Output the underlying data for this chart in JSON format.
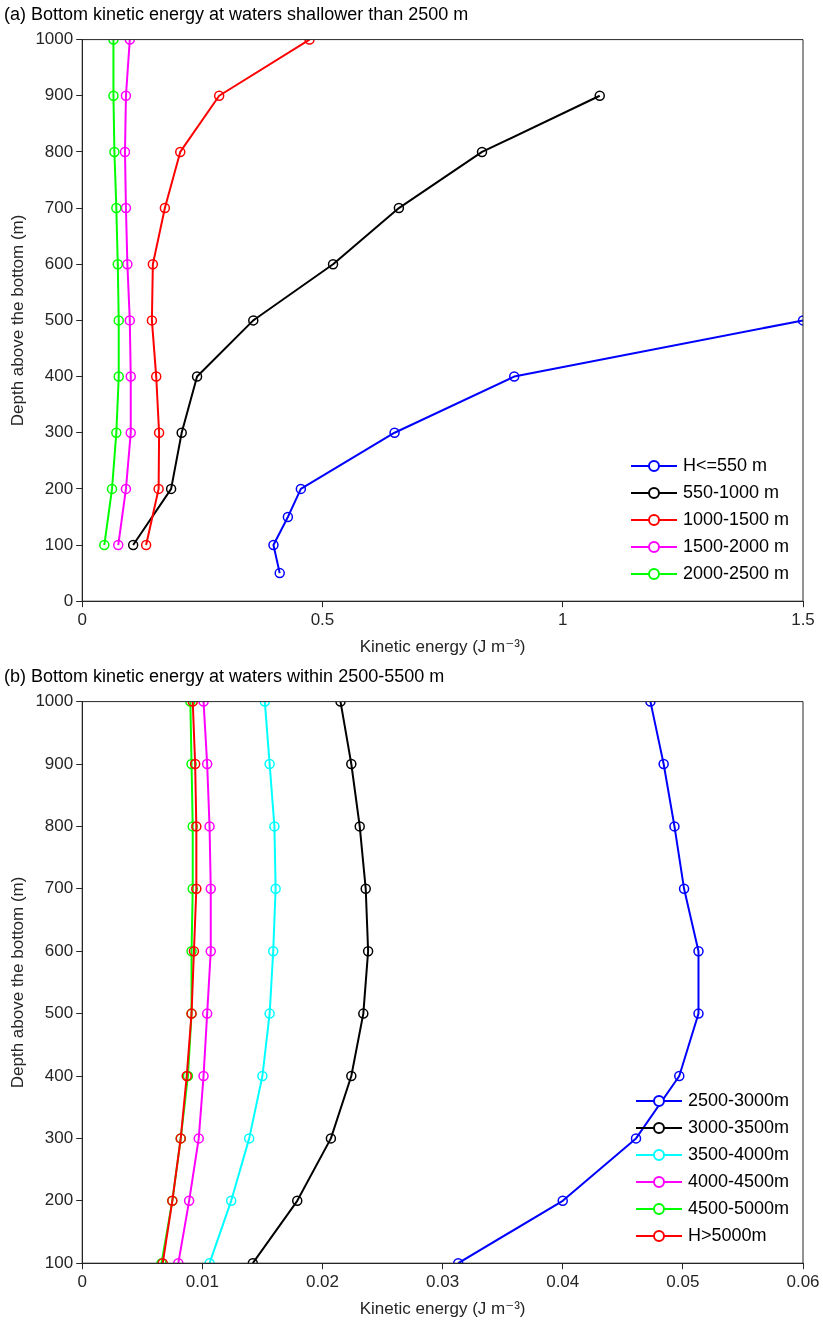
{
  "chart_data": [
    {
      "type": "line",
      "title": "(a) Bottom kinetic energy at waters shallower than 2500 m",
      "xlabel": "Kinetic energy (J m⁻³)",
      "ylabel": "Depth above the bottom (m)",
      "xlim": [
        0,
        1.5
      ],
      "xticks": [
        0,
        0.5,
        1,
        1.5
      ],
      "ylim": [
        0,
        1000
      ],
      "yticks": [
        0,
        100,
        200,
        300,
        400,
        500,
        600,
        700,
        800,
        900,
        1000
      ],
      "grid": false,
      "legend": "bottom right",
      "marker": "circle",
      "line_style": "solid",
      "series": [
        {
          "name": "H<=550 m",
          "color": "#0000ff",
          "x": [
            0.411,
            0.398,
            0.428,
            0.455,
            0.65,
            0.899,
            1.5
          ],
          "values": [
            50,
            100,
            150,
            200,
            300,
            400,
            500
          ]
        },
        {
          "name": "550-1000 m",
          "color": "#000000",
          "x": [
            0.106,
            0.185,
            0.207,
            0.239,
            0.356,
            0.522,
            0.659,
            0.832,
            1.077
          ],
          "values": [
            100,
            200,
            300,
            400,
            500,
            600,
            700,
            800,
            900
          ]
        },
        {
          "name": "1000-1500 m",
          "color": "#ff0000",
          "x": [
            0.133,
            0.159,
            0.16,
            0.154,
            0.145,
            0.147,
            0.172,
            0.204,
            0.285,
            0.473
          ],
          "values": [
            100,
            200,
            300,
            400,
            500,
            600,
            700,
            800,
            900,
            1000
          ]
        },
        {
          "name": "1500-2000 m",
          "color": "#ff00ff",
          "x": [
            0.075,
            0.091,
            0.101,
            0.101,
            0.099,
            0.094,
            0.091,
            0.089,
            0.091,
            0.099
          ],
          "values": [
            100,
            200,
            300,
            400,
            500,
            600,
            700,
            800,
            900,
            1000
          ]
        },
        {
          "name": "2000-2500 m",
          "color": "#00ff00",
          "x": [
            0.046,
            0.062,
            0.071,
            0.076,
            0.076,
            0.074,
            0.071,
            0.067,
            0.065,
            0.065
          ],
          "values": [
            100,
            200,
            300,
            400,
            500,
            600,
            700,
            800,
            900,
            1000
          ]
        }
      ]
    },
    {
      "type": "line",
      "title": "(b) Bottom kinetic energy at waters within 2500-5500 m",
      "xlabel": "Kinetic energy (J m⁻³)",
      "ylabel": "Depth above the bottom (m)",
      "xlim": [
        0,
        0.06
      ],
      "xticks": [
        0,
        0.01,
        0.02,
        0.03,
        0.04,
        0.05,
        0.06
      ],
      "ylim": [
        100,
        1000
      ],
      "yticks": [
        100,
        200,
        300,
        400,
        500,
        600,
        700,
        800,
        900,
        1000
      ],
      "grid": false,
      "legend": "bottom right",
      "marker": "circle",
      "line_style": "solid",
      "series": [
        {
          "name": "2500-3000m",
          "color": "#0000ff",
          "x": [
            0.0313,
            0.04,
            0.0461,
            0.0497,
            0.0513,
            0.0513,
            0.0501,
            0.0493,
            0.0484,
            0.0473
          ],
          "values": [
            100,
            200,
            300,
            400,
            500,
            600,
            700,
            800,
            900,
            1000
          ]
        },
        {
          "name": "3000-3500m",
          "color": "#000000",
          "x": [
            0.0142,
            0.0179,
            0.0207,
            0.0224,
            0.0234,
            0.0238,
            0.0236,
            0.0231,
            0.0224,
            0.0215
          ],
          "values": [
            100,
            200,
            300,
            400,
            500,
            600,
            700,
            800,
            900,
            1000
          ]
        },
        {
          "name": "3500-4000m",
          "color": "#00ffff",
          "x": [
            0.0106,
            0.0124,
            0.0139,
            0.015,
            0.0156,
            0.0159,
            0.0161,
            0.016,
            0.0156,
            0.0152
          ],
          "values": [
            100,
            200,
            300,
            400,
            500,
            600,
            700,
            800,
            900,
            1000
          ]
        },
        {
          "name": "4000-4500m",
          "color": "#ff00ff",
          "x": [
            0.008,
            0.0089,
            0.0097,
            0.0101,
            0.0104,
            0.0107,
            0.0107,
            0.0106,
            0.0104,
            0.0101
          ],
          "values": [
            100,
            200,
            300,
            400,
            500,
            600,
            700,
            800,
            900,
            1000
          ]
        },
        {
          "name": "4500-5000m",
          "color": "#00ff00",
          "x": [
            0.0066,
            0.0075,
            0.0082,
            0.0088,
            0.0091,
            0.0091,
            0.0092,
            0.0092,
            0.0091,
            0.009
          ],
          "values": [
            100,
            200,
            300,
            400,
            500,
            600,
            700,
            800,
            900,
            1000
          ]
        },
        {
          "name": "H>5000m",
          "color": "#ff0000",
          "x": [
            0.0067,
            0.0075,
            0.0082,
            0.0087,
            0.0091,
            0.0093,
            0.0095,
            0.0095,
            0.0094,
            0.0092
          ],
          "values": [
            100,
            200,
            300,
            400,
            500,
            600,
            700,
            800,
            900,
            1000
          ]
        }
      ]
    }
  ]
}
